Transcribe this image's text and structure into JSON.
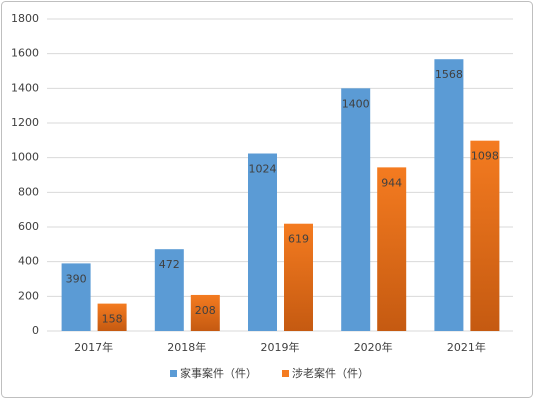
{
  "chart_data": {
    "type": "bar",
    "categories": [
      "2017年",
      "2018年",
      "2019年",
      "2020年",
      "2021年"
    ],
    "series": [
      {
        "name": "家事案件（件）",
        "color": "#5b9bd5",
        "values": [
          390,
          472,
          1024,
          1400,
          1568
        ]
      },
      {
        "name": "涉老案件（件）",
        "color": "#f47b20",
        "values": [
          158,
          208,
          619,
          944,
          1098
        ]
      }
    ],
    "ylim": [
      0,
      1800
    ],
    "yticks": [
      0,
      200,
      400,
      600,
      800,
      1000,
      1200,
      1400,
      1600,
      1800
    ],
    "grid": true,
    "legend": "bottom"
  }
}
